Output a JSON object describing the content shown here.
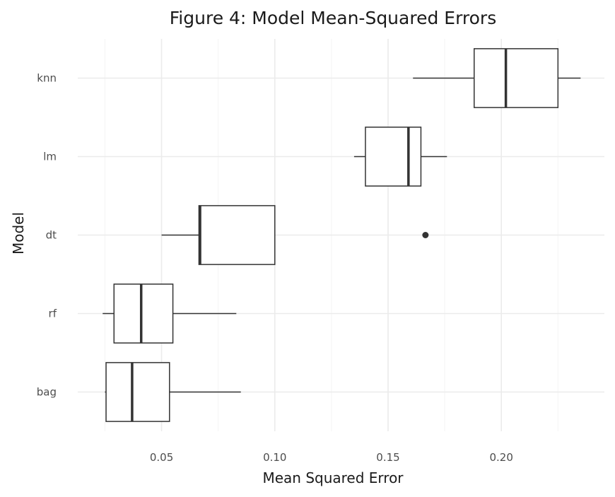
{
  "chart_data": {
    "type": "boxplot",
    "title": "Figure 4: Model Mean-Squared Errors",
    "xlabel": "Mean Squared Error",
    "ylabel": "Model",
    "xlim": [
      0.013,
      0.2455
    ],
    "x_ticks": [
      0.05,
      0.1,
      0.15,
      0.2
    ],
    "x_tick_labels": [
      "0.05",
      "0.10",
      "0.15",
      "0.20"
    ],
    "x_minor_ticks": [
      0.025,
      0.075,
      0.125,
      0.175,
      0.225
    ],
    "categories": [
      "knn",
      "lm",
      "dt",
      "rf",
      "bag"
    ],
    "boxes": [
      {
        "model": "knn",
        "whisker_low": 0.161,
        "q1": 0.188,
        "median": 0.202,
        "q3": 0.225,
        "whisker_high": 0.235,
        "outliers": []
      },
      {
        "model": "lm",
        "whisker_low": 0.135,
        "q1": 0.14,
        "median": 0.159,
        "q3": 0.1645,
        "whisker_high": 0.176,
        "outliers": []
      },
      {
        "model": "dt",
        "whisker_low": 0.05,
        "q1": 0.0665,
        "median": 0.067,
        "q3": 0.1,
        "whisker_high": 0.1,
        "outliers": [
          0.1665
        ]
      },
      {
        "model": "rf",
        "whisker_low": 0.024,
        "q1": 0.029,
        "median": 0.041,
        "q3": 0.055,
        "whisker_high": 0.083,
        "outliers": []
      },
      {
        "model": "bag",
        "whisker_low": 0.025,
        "q1": 0.0255,
        "median": 0.037,
        "q3": 0.0535,
        "whisker_high": 0.085,
        "outliers": []
      }
    ],
    "grid": true,
    "legend": "none",
    "colors": {
      "box_stroke": "#333333",
      "box_fill": "#ffffff",
      "grid_major": "#ebebeb",
      "grid_minor": "#f4f4f4"
    }
  }
}
